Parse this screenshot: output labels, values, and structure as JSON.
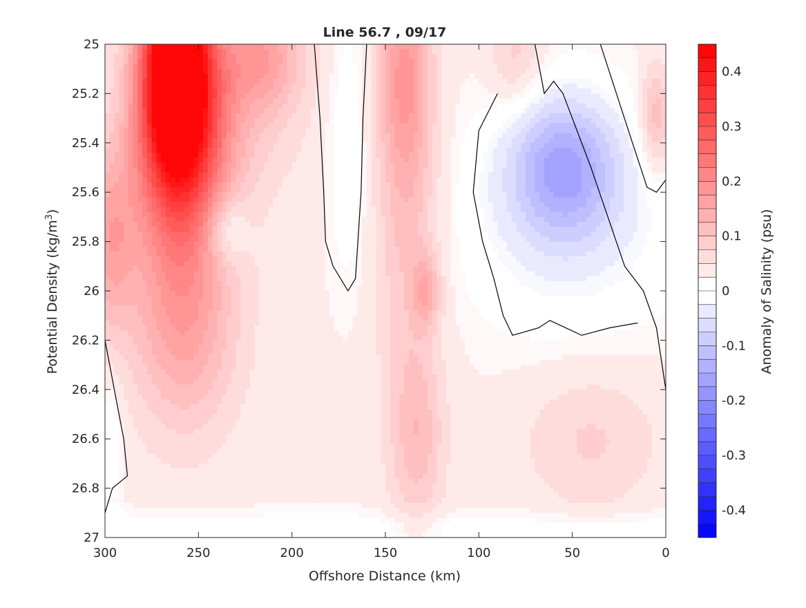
{
  "chart_data": {
    "type": "heatmap",
    "title": "Line 56.7 , 09/17",
    "xlabel": "Offshore Distance (km)",
    "ylabel_main": "Potential Density (kg/m",
    "ylabel_sup": "3",
    "ylabel_end": ")",
    "colorbar_label": "Anomaly of Salinity (psu)",
    "xlim": [
      300,
      0
    ],
    "ylim": [
      25,
      27
    ],
    "x_reversed": true,
    "y_reversed": true,
    "xticks": [
      300,
      250,
      200,
      150,
      100,
      50,
      0
    ],
    "xtick_labels": [
      "300",
      "250",
      "200",
      "150",
      "100",
      "50",
      "0"
    ],
    "yticks": [
      25,
      25.2,
      25.4,
      25.6,
      25.8,
      26,
      26.2,
      26.4,
      26.6,
      26.8,
      27
    ],
    "ytick_labels": [
      "25",
      "25.2",
      "25.4",
      "25.6",
      "25.8",
      "26",
      "26.2",
      "26.4",
      "26.6",
      "26.8",
      "27"
    ],
    "clim": [
      -0.45,
      0.45
    ],
    "colorbar_ticks": [
      0.4,
      0.3,
      0.2,
      0.1,
      0,
      -0.1,
      -0.2,
      -0.3,
      -0.4
    ],
    "colorbar_tick_labels": [
      "0.4",
      "0.3",
      "0.2",
      "0.1",
      "0",
      "-0.1",
      "-0.2",
      "-0.3",
      "-0.4"
    ],
    "colormap": {
      "negative": "#0000ff",
      "zero": "#ffffff",
      "positive": "#ff0000"
    },
    "grid": false,
    "anomaly_features": [
      {
        "x": 262,
        "y": 25.05,
        "value": 0.45,
        "sx": 12,
        "sy": 0.3
      },
      {
        "x": 260,
        "y": 25.4,
        "value": 0.28,
        "sx": 18,
        "sy": 0.35
      },
      {
        "x": 258,
        "y": 26.15,
        "value": 0.12,
        "sx": 20,
        "sy": 0.3
      },
      {
        "x": 298,
        "y": 25.8,
        "value": 0.12,
        "sx": 10,
        "sy": 0.25
      },
      {
        "x": 230,
        "y": 25.2,
        "value": 0.06,
        "sx": 25,
        "sy": 0.3
      },
      {
        "x": 215,
        "y": 25.05,
        "value": 0.1,
        "sx": 15,
        "sy": 0.15
      },
      {
        "x": 140,
        "y": 25.1,
        "value": 0.12,
        "sx": 10,
        "sy": 0.3
      },
      {
        "x": 138,
        "y": 25.7,
        "value": 0.08,
        "sx": 12,
        "sy": 0.5
      },
      {
        "x": 128,
        "y": 26.0,
        "value": 0.09,
        "sx": 5,
        "sy": 0.1
      },
      {
        "x": 133,
        "y": 26.6,
        "value": 0.08,
        "sx": 10,
        "sy": 0.25
      },
      {
        "x": 80,
        "y": 25.05,
        "value": 0.06,
        "sx": 10,
        "sy": 0.15
      },
      {
        "x": 5,
        "y": 25.3,
        "value": 0.1,
        "sx": 6,
        "sy": 0.15
      },
      {
        "x": 40,
        "y": 26.6,
        "value": 0.05,
        "sx": 25,
        "sy": 0.2
      },
      {
        "x": 170,
        "y": 25.4,
        "value": -0.04,
        "sx": 8,
        "sy": 0.4
      },
      {
        "x": 55,
        "y": 25.5,
        "value": -0.15,
        "sx": 20,
        "sy": 0.2
      },
      {
        "x": 50,
        "y": 25.7,
        "value": -0.06,
        "sx": 45,
        "sy": 0.35
      },
      {
        "x": 235,
        "y": 25.75,
        "value": -0.08,
        "sx": 8,
        "sy": 0.1
      },
      {
        "x": 297,
        "y": 26.6,
        "value": -0.04,
        "sx": 5,
        "sy": 0.2
      }
    ],
    "zero_contours": [
      [
        [
          188,
          25.0
        ],
        [
          185,
          25.3
        ],
        [
          183,
          25.6
        ],
        [
          182,
          25.8
        ],
        [
          178,
          25.9
        ],
        [
          170,
          26.0
        ],
        [
          166,
          25.95
        ],
        [
          163,
          25.6
        ],
        [
          162,
          25.3
        ],
        [
          160,
          25.0
        ]
      ],
      [
        [
          70,
          25.0
        ],
        [
          65,
          25.2
        ],
        [
          60,
          25.15
        ],
        [
          55,
          25.2
        ],
        [
          40,
          25.5
        ],
        [
          22,
          25.9
        ],
        [
          12,
          26.0
        ],
        [
          5,
          26.15
        ],
        [
          0,
          26.4
        ]
      ],
      [
        [
          90,
          25.2
        ],
        [
          100,
          25.35
        ],
        [
          103,
          25.6
        ],
        [
          98,
          25.8
        ],
        [
          92,
          25.95
        ],
        [
          87,
          26.1
        ],
        [
          82,
          26.18
        ],
        [
          68,
          26.15
        ],
        [
          62,
          26.12
        ],
        [
          45,
          26.18
        ],
        [
          30,
          26.15
        ],
        [
          15,
          26.13
        ]
      ],
      [
        [
          35,
          25.0
        ],
        [
          20,
          25.35
        ],
        [
          10,
          25.58
        ],
        [
          5,
          25.6
        ],
        [
          0,
          25.55
        ]
      ],
      [
        [
          300,
          26.2
        ],
        [
          295,
          26.4
        ],
        [
          290,
          26.6
        ],
        [
          288,
          26.75
        ],
        [
          296,
          26.8
        ],
        [
          300,
          26.9
        ]
      ]
    ]
  }
}
